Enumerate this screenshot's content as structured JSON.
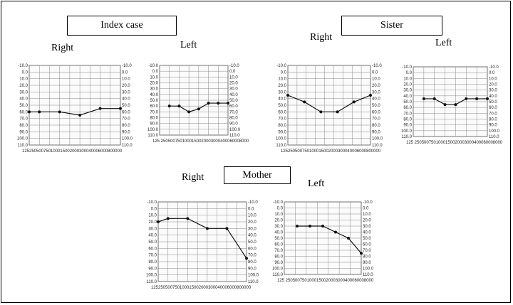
{
  "groups": {
    "index": "Index case",
    "sister": "Sister",
    "mother": "Mother"
  },
  "sides": {
    "right": "Right",
    "left": "Left"
  },
  "y_ticks": [
    "-10.0",
    "0.0",
    "10.0",
    "20.0",
    "30.0",
    "40.0",
    "50.0",
    "60.0",
    "70.0",
    "80.0",
    "90.0",
    "100.0",
    "110.0"
  ],
  "y_ticks_right": [
    "-10.0",
    "0.0",
    "10.0",
    "20.0",
    "30.0",
    "40.0",
    "50.0",
    "60.0",
    "70.0",
    "80.0",
    "90.0",
    "100.0",
    "110.0"
  ],
  "chart_data": [
    {
      "type": "line",
      "panel": "index-right",
      "ylim": [
        -10,
        110
      ],
      "x_tick_text": "125250500750100015002000300040006000800000",
      "series": [
        {
          "values": [
            60,
            60,
            null,
            60,
            null,
            65,
            null,
            55,
            null,
            55
          ]
        }
      ]
    },
    {
      "type": "line",
      "panel": "index-left",
      "ylim": [
        -10,
        110
      ],
      "x_tick_text": "125 2505007501000150020003000400060008000",
      "series": [
        {
          "values": [
            null,
            60,
            60,
            70,
            65,
            55,
            55,
            55
          ]
        }
      ]
    },
    {
      "type": "line",
      "panel": "sister-right",
      "ylim": [
        -10,
        110
      ],
      "x_tick_text": "125250500750100015002000300040006000800000",
      "series": [
        {
          "values": [
            35,
            45,
            60,
            60,
            45,
            35
          ]
        }
      ]
    },
    {
      "type": "line",
      "panel": "sister-left",
      "ylim": [
        -10,
        110
      ],
      "x_tick_text": "125 2505007501000150020003000400060008000",
      "series": [
        {
          "values": [
            null,
            45,
            45,
            55,
            55,
            45,
            45,
            45
          ]
        }
      ]
    },
    {
      "type": "line",
      "panel": "mother-right",
      "ylim": [
        -10,
        110
      ],
      "x_tick_text": "125250500750100015002000300040006000800000",
      "series": [
        {
          "values": [
            20,
            15,
            null,
            15,
            null,
            30,
            null,
            30,
            null,
            75
          ]
        }
      ]
    },
    {
      "type": "line",
      "panel": "mother-left",
      "ylim": [
        -10,
        110
      ],
      "x_tick_text": "125 2505007501000150020003000400060008000",
      "series": [
        {
          "values": [
            null,
            30,
            30,
            30,
            40,
            50,
            75
          ]
        }
      ]
    }
  ]
}
